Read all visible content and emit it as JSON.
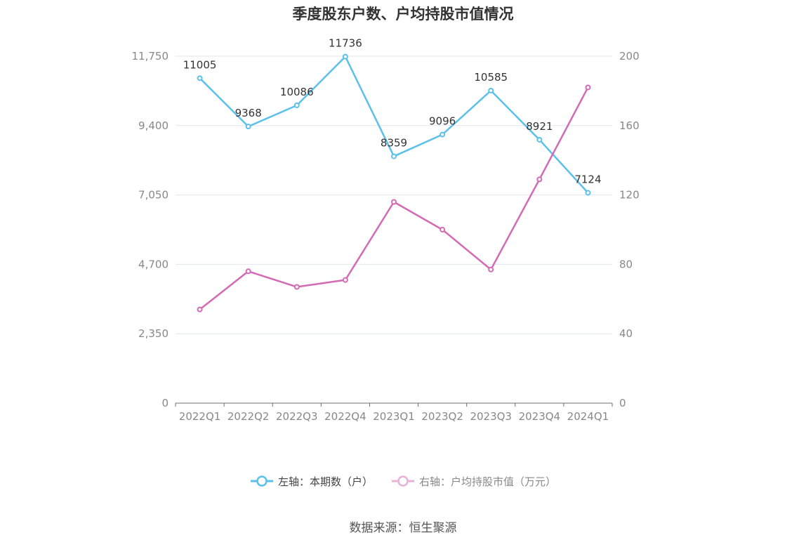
{
  "chart_data": {
    "type": "line",
    "title": "季度股东户数、户均持股市值情况",
    "categories": [
      "2022Q1",
      "2022Q2",
      "2022Q3",
      "2022Q4",
      "2023Q1",
      "2023Q2",
      "2023Q3",
      "2023Q4",
      "2024Q1"
    ],
    "series": [
      {
        "name": "左轴：本期数（户）",
        "axis": "left",
        "color": "#5bc0eb",
        "values": [
          11005,
          9368,
          10086,
          11736,
          8359,
          9096,
          10585,
          8921,
          7124
        ],
        "labels": [
          "11005",
          "9368",
          "10086",
          "11736",
          "8359",
          "9096",
          "10585",
          "8921",
          "7124"
        ]
      },
      {
        "name": "右轴：户均持股市值（万元）",
        "axis": "right",
        "color": "#d36bb4",
        "values": [
          54,
          76,
          67,
          71,
          116,
          100,
          77,
          129,
          182
        ]
      }
    ],
    "left_axis": {
      "ylim": [
        0,
        11750
      ],
      "ticks": [
        0,
        2350,
        4700,
        7050,
        9400,
        11750
      ],
      "tick_labels": [
        "0",
        "2,350",
        "4,700",
        "7,050",
        "9,400",
        "11,750"
      ]
    },
    "right_axis": {
      "ylim": [
        0,
        200
      ],
      "ticks": [
        0,
        40,
        80,
        120,
        160,
        200
      ],
      "tick_labels": [
        "0",
        "40",
        "80",
        "120",
        "160",
        "200"
      ]
    },
    "grid": true,
    "legend_position": "bottom-center"
  },
  "source_text": "数据来源：恒生聚源"
}
